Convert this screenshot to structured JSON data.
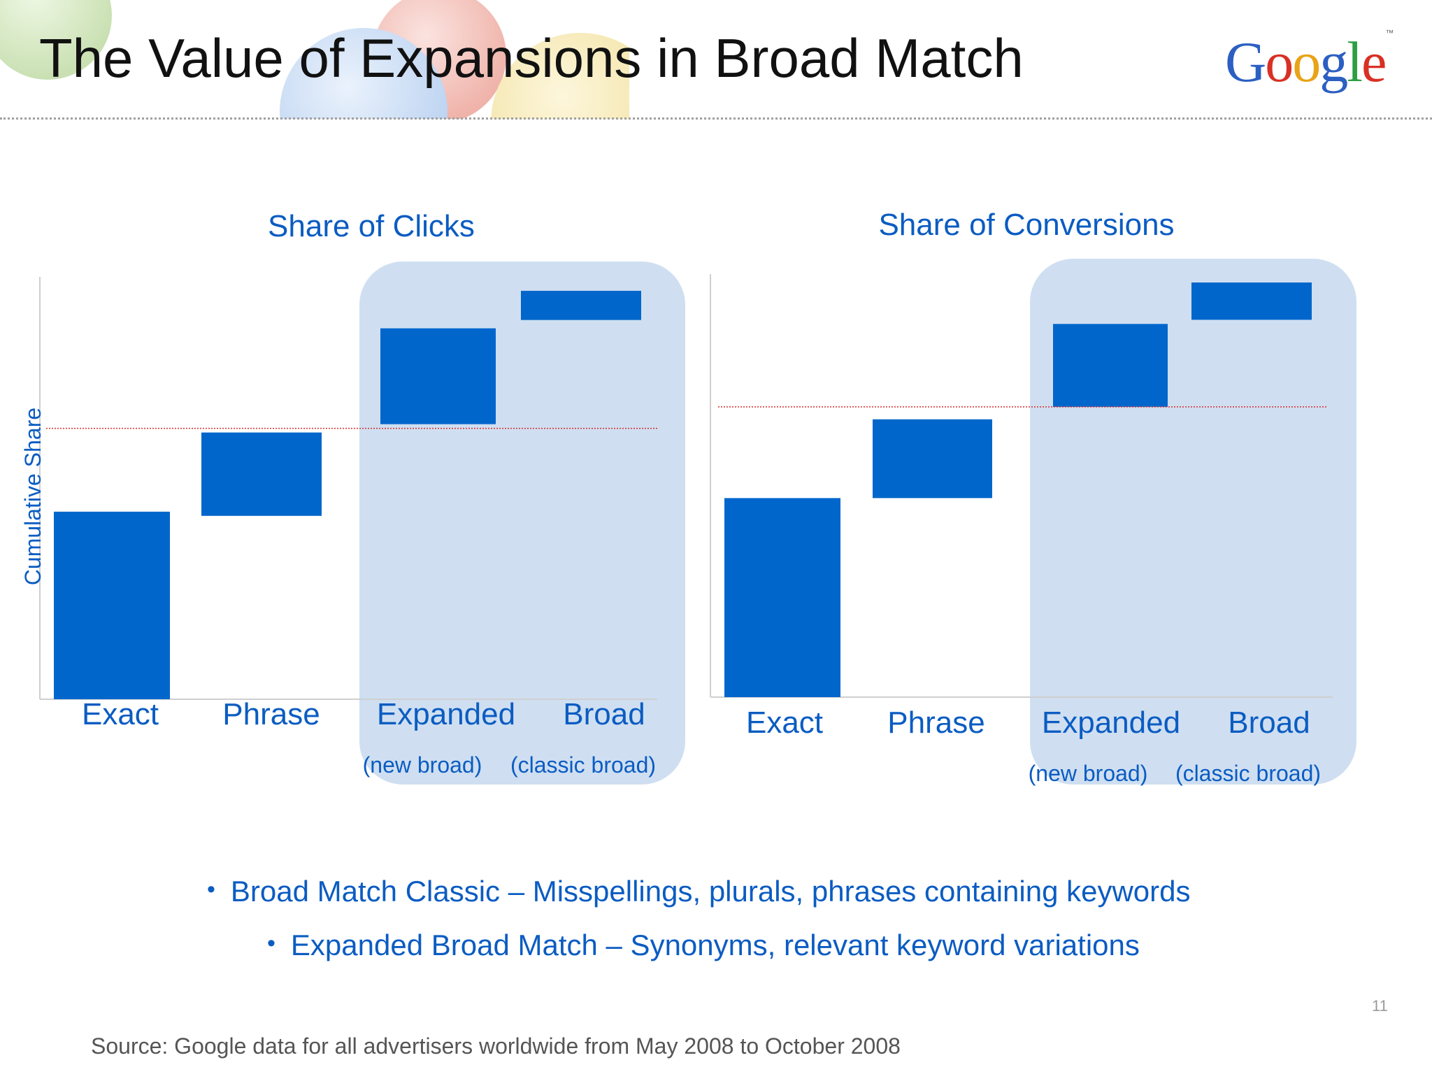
{
  "slide": {
    "title": "The Value of Expansions in Broad Match",
    "logo_text": "Google",
    "logo_tm": "™",
    "page_number": "11",
    "source": "Source: Google data for all advertisers worldwide from May 2008 to October 2008",
    "bullets": [
      {
        "marker": "•",
        "text": "Broad Match Classic – Misspellings, plurals, phrases containing keywords"
      },
      {
        "marker": "•",
        "text": "Expanded Broad Match – Synonyms, relevant keyword variations"
      }
    ]
  },
  "colors": {
    "bar": "#0066cc",
    "highlight": "#cfdff1",
    "label_text": "#0b5cc2",
    "reference_line": "#d32f2f",
    "axis": "#cfcfcf",
    "logo_letters": [
      "#2c5fc2",
      "#d93025",
      "#e8a317",
      "#2c5fc2",
      "#2e9e43",
      "#d93025"
    ]
  },
  "chart_data": [
    {
      "type": "bar",
      "subtype": "waterfall",
      "title": "Share of Clicks",
      "ylabel": "Cumulative Share",
      "xlabel": "",
      "ylim": [
        0,
        100
      ],
      "grid": false,
      "categories": [
        "Exact",
        "Phrase",
        "Expanded",
        "Broad"
      ],
      "sublabels": [
        "",
        "",
        "(new broad)",
        "(classic broad)"
      ],
      "highlighted_categories": [
        "Expanded",
        "Broad"
      ],
      "segments": [
        {
          "category": "Exact",
          "start": 0,
          "end": 45
        },
        {
          "category": "Phrase",
          "start": 44,
          "end": 64
        },
        {
          "category": "Expanded",
          "start": 66,
          "end": 89
        },
        {
          "category": "Broad",
          "start": 91,
          "end": 98
        }
      ],
      "reference_line": 65
    },
    {
      "type": "bar",
      "subtype": "waterfall",
      "title": "Share of Conversions",
      "ylabel": "",
      "xlabel": "",
      "ylim": [
        0,
        100
      ],
      "grid": false,
      "categories": [
        "Exact",
        "Phrase",
        "Expanded",
        "Broad"
      ],
      "sublabels": [
        "",
        "",
        "(new broad)",
        "(classic broad)"
      ],
      "highlighted_categories": [
        "Expanded",
        "Broad"
      ],
      "segments": [
        {
          "category": "Exact",
          "start": 0,
          "end": 48
        },
        {
          "category": "Phrase",
          "start": 48,
          "end": 67
        },
        {
          "category": "Expanded",
          "start": 70,
          "end": 90
        },
        {
          "category": "Broad",
          "start": 91,
          "end": 100
        }
      ],
      "reference_line": 70
    }
  ]
}
